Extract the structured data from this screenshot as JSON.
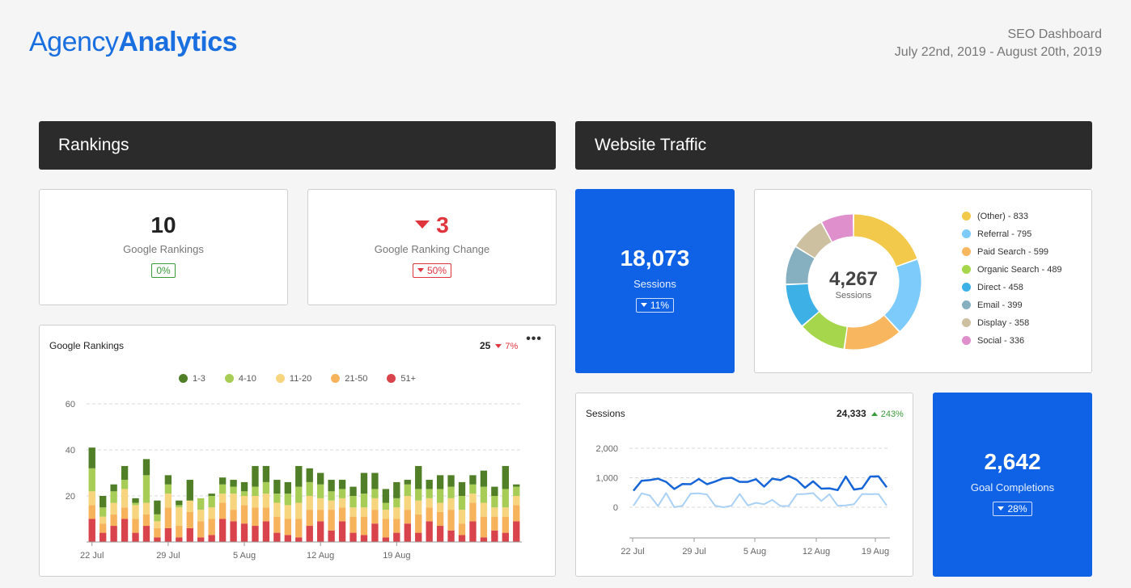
{
  "header": {
    "logo_part1": "Agency",
    "logo_part2": "Analytics",
    "report_title": "SEO Dashboard",
    "date_range": "July 22nd, 2019 - August 20th, 2019"
  },
  "sections": {
    "rankings": "Rankings",
    "traffic": "Website Traffic"
  },
  "kpis": {
    "google_rankings": {
      "value": "10",
      "label": "Google Rankings",
      "change": "0%"
    },
    "ranking_change": {
      "value": "3",
      "label": "Google Ranking Change",
      "change": "50%"
    },
    "sessions": {
      "value": "18,073",
      "label": "Sessions",
      "change": "11%"
    },
    "goal_completions": {
      "value": "2,642",
      "label": "Goal Completions",
      "change": "28%"
    }
  },
  "colors": {
    "accent": "#0f62e6",
    "header_bar": "#2b2b2b",
    "up": "#3a9a3a",
    "down": "#e0353d"
  },
  "icons": {
    "down_arrow": "caret-down-icon",
    "up_arrow": "caret-up-icon",
    "menu": "more-dots-icon"
  },
  "rankings_chart": {
    "title": "Google Rankings",
    "total": "25",
    "change": "7%",
    "menu": "•••"
  },
  "sessions_chart": {
    "title": "Sessions",
    "total": "24,333",
    "change": "243%"
  },
  "donut": {
    "center_value": "4,267",
    "center_label": "Sessions",
    "legend_labels": [
      "(Other) - 833",
      "Referral - 795",
      "Paid Search - 599",
      "Organic Search - 489",
      "Direct - 458",
      "Email - 399",
      "Display - 358",
      "Social - 336"
    ]
  },
  "chart_data": [
    {
      "type": "bar",
      "stacked": true,
      "title": "Google Rankings",
      "x_tick_labels": [
        "22 Jul",
        "29 Jul",
        "5 Aug",
        "12 Aug",
        "19 Aug"
      ],
      "y_ticks": [
        "60",
        "40",
        "20"
      ],
      "ylim": [
        0,
        60
      ],
      "grid": true,
      "legend_position": "top-center",
      "series": [
        {
          "name": "51+",
          "color": "#d9434b",
          "values": [
            10,
            4,
            7,
            10,
            4,
            7,
            2,
            6,
            2,
            6,
            2,
            3,
            10,
            9,
            8,
            7,
            9,
            4,
            3,
            2,
            7,
            9,
            5,
            9,
            4,
            3,
            8,
            2,
            4,
            8,
            4,
            9,
            7,
            5,
            3,
            9,
            2,
            5,
            4,
            9
          ]
        },
        {
          "name": "21-50",
          "color": "#f7b25c",
          "values": [
            6,
            4,
            5,
            5,
            6,
            5,
            4,
            9,
            5,
            7,
            7,
            7,
            7,
            5,
            8,
            8,
            6,
            7,
            7,
            8,
            7,
            5,
            9,
            6,
            7,
            8,
            6,
            8,
            6,
            6,
            8,
            6,
            6,
            9,
            5,
            8,
            9,
            6,
            7,
            7
          ]
        },
        {
          "name": "11-20",
          "color": "#f6d57e",
          "values": [
            6,
            3,
            5,
            8,
            6,
            5,
            3,
            6,
            8,
            5,
            5,
            5,
            4,
            7,
            4,
            5,
            6,
            6,
            6,
            7,
            6,
            5,
            4,
            4,
            4,
            4,
            5,
            4,
            5,
            6,
            6,
            4,
            4,
            5,
            6,
            4,
            6,
            4,
            4,
            4
          ]
        },
        {
          "name": "4-10",
          "color": "#a8cd57",
          "values": [
            10,
            4,
            5,
            4,
            1,
            12,
            3,
            4,
            1,
            0,
            5,
            5,
            4,
            3,
            2,
            4,
            5,
            4,
            5,
            7,
            6,
            6,
            4,
            4,
            5,
            6,
            4,
            3,
            4,
            5,
            5,
            4,
            6,
            5,
            6,
            4,
            7,
            5,
            8,
            4
          ]
        },
        {
          "name": "1-3",
          "color": "#507f27",
          "values": [
            9,
            5,
            3,
            6,
            2,
            7,
            6,
            4,
            2,
            9,
            0,
            1,
            3,
            3,
            4,
            9,
            7,
            6,
            5,
            9,
            6,
            5,
            5,
            4,
            4,
            9,
            7,
            6,
            7,
            2,
            10,
            4,
            6,
            5,
            6,
            4,
            7,
            4,
            10,
            1
          ]
        }
      ]
    },
    {
      "type": "donut",
      "center_value": "4,267",
      "center_label": "Sessions",
      "slices": [
        {
          "label": "(Other)",
          "value": 833,
          "color": "#f2c94a"
        },
        {
          "label": "Referral",
          "value": 795,
          "color": "#7dcbfb"
        },
        {
          "label": "Paid Search",
          "value": 599,
          "color": "#f8b65e"
        },
        {
          "label": "Organic Search",
          "value": 489,
          "color": "#a6d64c"
        },
        {
          "label": "Direct",
          "value": 458,
          "color": "#3db1e6"
        },
        {
          "label": "Email",
          "value": 399,
          "color": "#86b0bf"
        },
        {
          "label": "Display",
          "value": 358,
          "color": "#cdc0a0"
        },
        {
          "label": "Social",
          "value": 336,
          "color": "#de8fcc"
        }
      ]
    },
    {
      "type": "line",
      "title": "Sessions",
      "x_tick_labels": [
        "22 Jul",
        "29 Jul",
        "5 Aug",
        "12 Aug",
        "19 Aug"
      ],
      "y_ticks": [
        "2,000",
        "1,000",
        "0"
      ],
      "ylim": [
        0,
        2000
      ],
      "grid": true,
      "series": [
        {
          "name": "current",
          "color": "#1565d8",
          "values": [
            560,
            900,
            920,
            970,
            860,
            620,
            790,
            780,
            960,
            780,
            870,
            980,
            1000,
            860,
            860,
            950,
            700,
            970,
            920,
            1060,
            930,
            660,
            880,
            630,
            640,
            580,
            1040,
            600,
            640,
            1040,
            1050,
            680
          ]
        },
        {
          "name": "previous",
          "color": "#a9d0f5",
          "values": [
            50,
            470,
            400,
            40,
            480,
            0,
            50,
            460,
            470,
            430,
            50,
            0,
            50,
            450,
            60,
            150,
            100,
            250,
            40,
            40,
            440,
            450,
            480,
            210,
            440,
            50,
            60,
            100,
            450,
            440,
            450,
            60
          ]
        }
      ]
    }
  ]
}
